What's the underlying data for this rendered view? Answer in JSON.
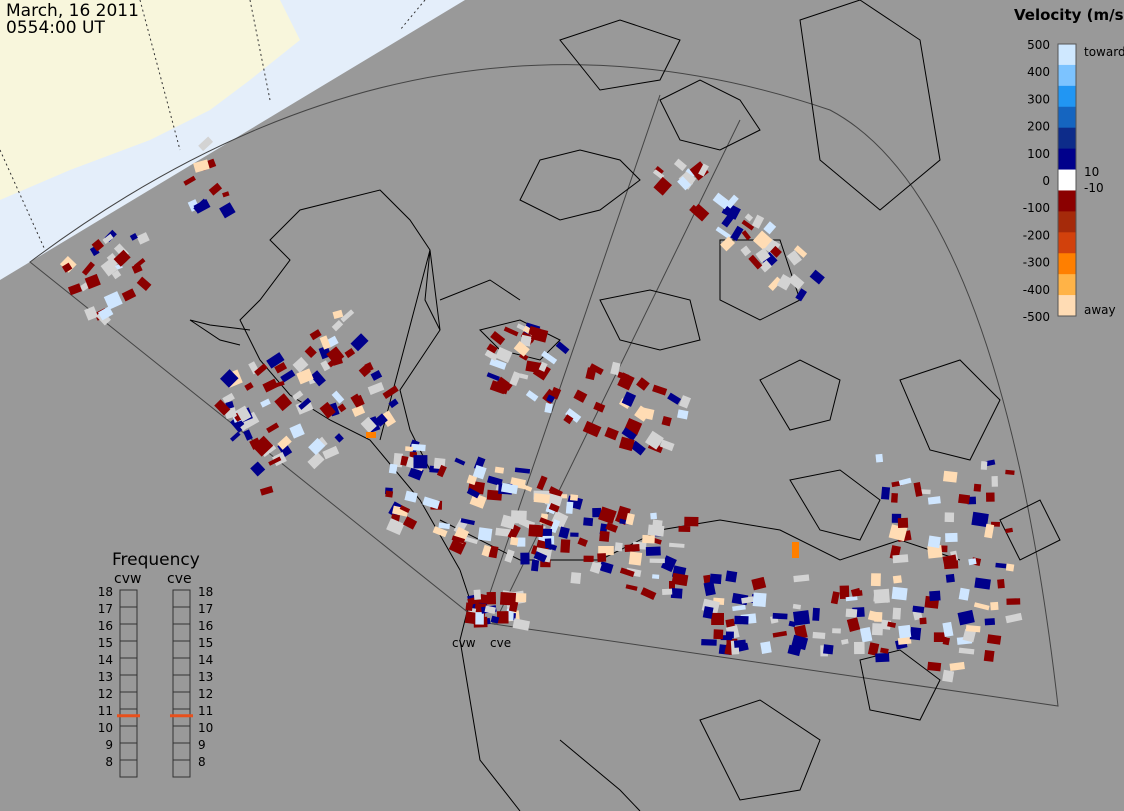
{
  "header": {
    "date": "March, 16 2011",
    "time": "0554:00 UT"
  },
  "colorbar": {
    "title": "Velocity (m/s)",
    "ticks": [
      "500",
      "400",
      "300",
      "200",
      "100",
      "0",
      "-100",
      "-200",
      "-300",
      "-400",
      "-500"
    ],
    "inner_ticks": [
      "10",
      "-10"
    ],
    "toward_label": "toward",
    "away_label": "away"
  },
  "frequency": {
    "title": "Frequency",
    "radars": [
      {
        "name": "cvw",
        "value_mhz": 10.6
      },
      {
        "name": "cve",
        "value_mhz": 10.6
      }
    ],
    "ticks": [
      "18",
      "17",
      "16",
      "15",
      "14",
      "13",
      "12",
      "11",
      "10",
      "9",
      "8"
    ]
  },
  "stations": [
    "cvw",
    "cve"
  ],
  "colors": {
    "background": "#999999",
    "sunlit": "#f8f6dc",
    "dayside": "#e4eefa",
    "ground_scatter": "#d3d3d3",
    "dark_red": "#8b0000",
    "navy": "#00008b",
    "light_blue": "#cfe6ff",
    "peach": "#ffdcb4",
    "orange": "#ff7f00",
    "indicator": "#e8501c"
  }
}
